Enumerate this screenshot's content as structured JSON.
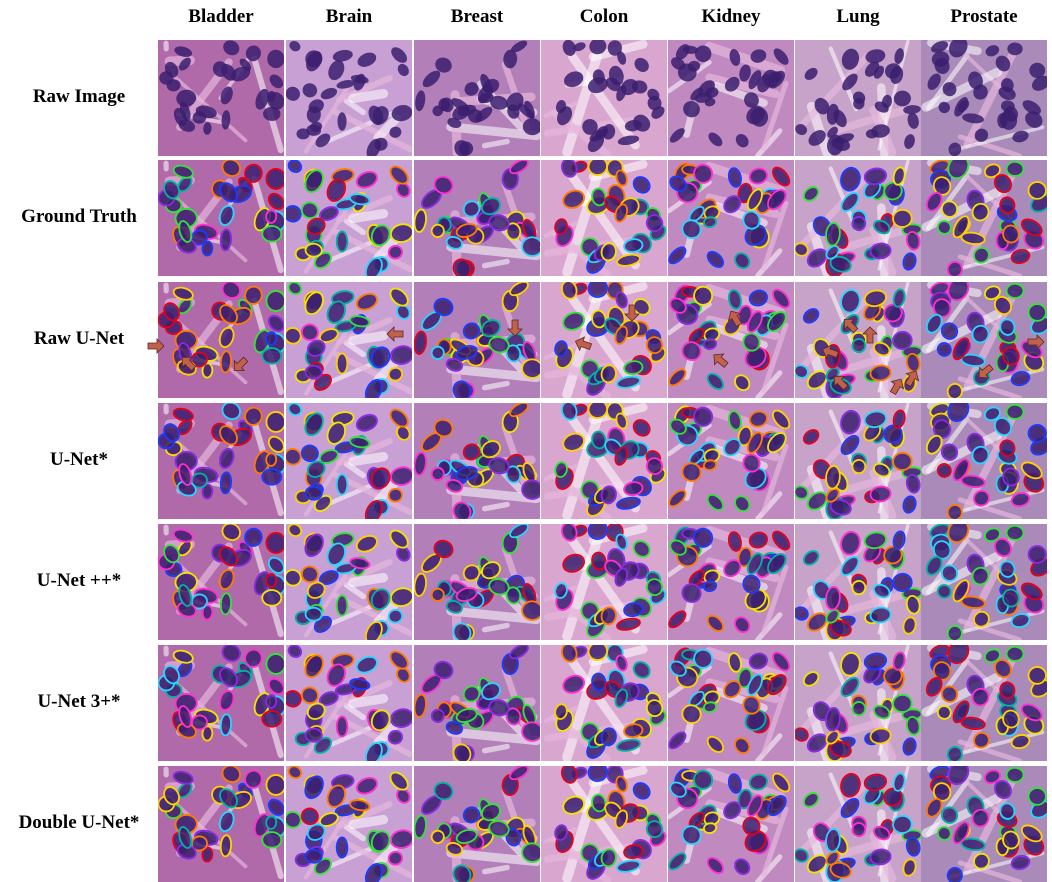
{
  "figure": {
    "columns": [
      "Bladder",
      "Brain",
      "Breast",
      "Colon",
      "Kidney",
      "Lung",
      "Prostate"
    ],
    "rows": [
      "Raw Image",
      "Ground Truth",
      "Raw U-Net",
      "U-Net*",
      "U-Net ++*",
      "U-Net 3+*",
      "Double U-Net*"
    ],
    "annotation_arrows": "error indicators on Raw U-Net row",
    "colors": {
      "stain_background": "#c78fc4",
      "stroma": "#e6b7dc",
      "nucleus": "#3b1f6e",
      "arrow": "#c0614c"
    }
  }
}
